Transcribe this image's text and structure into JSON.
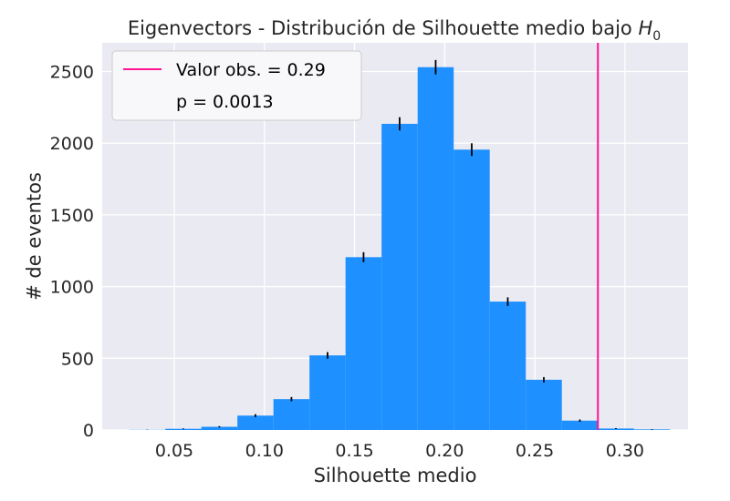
{
  "chart_data": {
    "type": "bar",
    "title": "Eigenvectors - Distribución de Silhouette medio bajo ",
    "title_math_var": "H",
    "title_math_sub": "0",
    "xlabel": "Silhouette medio",
    "ylabel": "# de eventos",
    "xlim": [
      0.01,
      0.335
    ],
    "ylim": [
      0,
      2700
    ],
    "xticks": [
      0.05,
      0.1,
      0.15,
      0.2,
      0.25,
      0.3
    ],
    "xtick_labels": [
      "0.05",
      "0.10",
      "0.15",
      "0.20",
      "0.25",
      "0.30"
    ],
    "yticks": [
      0,
      500,
      1000,
      1500,
      2000,
      2500
    ],
    "ytick_labels": [
      "0",
      "500",
      "1000",
      "1500",
      "2000",
      "2500"
    ],
    "grid": true,
    "legend_position": "top-left",
    "bin_width": 0.02,
    "bin_centers": [
      0.035,
      0.055,
      0.075,
      0.095,
      0.115,
      0.135,
      0.155,
      0.175,
      0.195,
      0.215,
      0.235,
      0.255,
      0.275,
      0.295,
      0.315
    ],
    "counts": [
      1,
      8,
      22,
      100,
      215,
      520,
      1205,
      2135,
      2530,
      1955,
      895,
      350,
      65,
      10,
      4
    ],
    "error_bars": true,
    "observed_value": 0.285,
    "legend": {
      "observed_label": "Valor obs. = 0.29",
      "p_label": "p = 0.0013"
    },
    "colors": {
      "bars": "#1e90ff",
      "observed_line": "#ff1493",
      "error_bars": "#000000",
      "background": "#eaeaf2",
      "grid": "#ffffff"
    }
  }
}
